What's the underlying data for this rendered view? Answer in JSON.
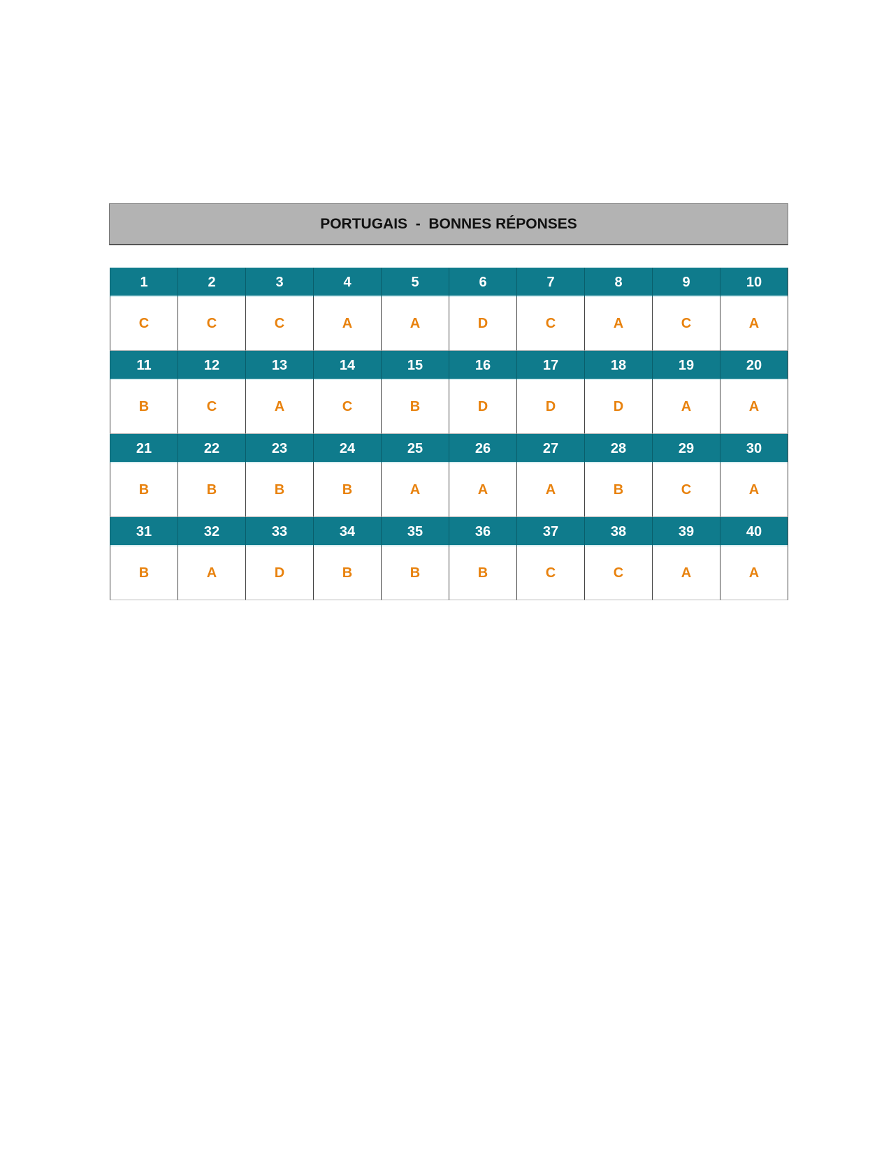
{
  "title": "PORTUGAIS  -  BONNES RÉPONSES",
  "blocks": [
    {
      "numbers": [
        1,
        2,
        3,
        4,
        5,
        6,
        7,
        8,
        9,
        10
      ],
      "answers": [
        "C",
        "C",
        "C",
        "A",
        "A",
        "D",
        "C",
        "A",
        "C",
        "A"
      ]
    },
    {
      "numbers": [
        11,
        12,
        13,
        14,
        15,
        16,
        17,
        18,
        19,
        20
      ],
      "answers": [
        "B",
        "C",
        "A",
        "C",
        "B",
        "D",
        "D",
        "D",
        "A",
        "A"
      ]
    },
    {
      "numbers": [
        21,
        22,
        23,
        24,
        25,
        26,
        27,
        28,
        29,
        30
      ],
      "answers": [
        "B",
        "B",
        "B",
        "B",
        "A",
        "A",
        "A",
        "B",
        "C",
        "A"
      ]
    },
    {
      "numbers": [
        31,
        32,
        33,
        34,
        35,
        36,
        37,
        38,
        39,
        40
      ],
      "answers": [
        "B",
        "A",
        "D",
        "B",
        "B",
        "B",
        "C",
        "C",
        "A",
        "A"
      ]
    }
  ]
}
